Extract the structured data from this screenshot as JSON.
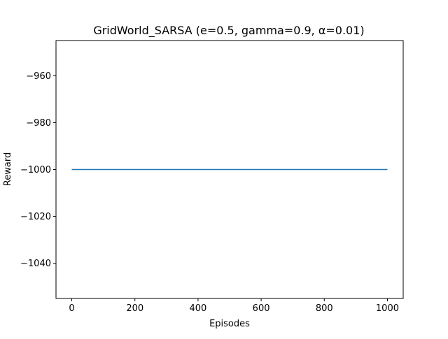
{
  "chart_data": {
    "type": "line",
    "title": "GridWorld_SARSA (e=0.5, gamma=0.9, α=0.01)",
    "xlabel": "Episodes",
    "ylabel": "Reward",
    "xlim": [
      -50,
      1050
    ],
    "ylim": [
      -1055,
      -945
    ],
    "xticks": [
      0,
      200,
      400,
      600,
      800,
      1000
    ],
    "xtick_labels": [
      "0",
      "200",
      "400",
      "600",
      "800",
      "1000"
    ],
    "yticks": [
      -960,
      -980,
      -1000,
      -1020,
      -1040
    ],
    "ytick_labels": [
      "−960",
      "−980",
      "−1000",
      "−1020",
      "−1040"
    ],
    "grid": false,
    "series": [
      {
        "x": [
          0,
          1000
        ],
        "y": [
          -1000,
          -1000
        ],
        "color": "#1f77b4"
      }
    ]
  }
}
